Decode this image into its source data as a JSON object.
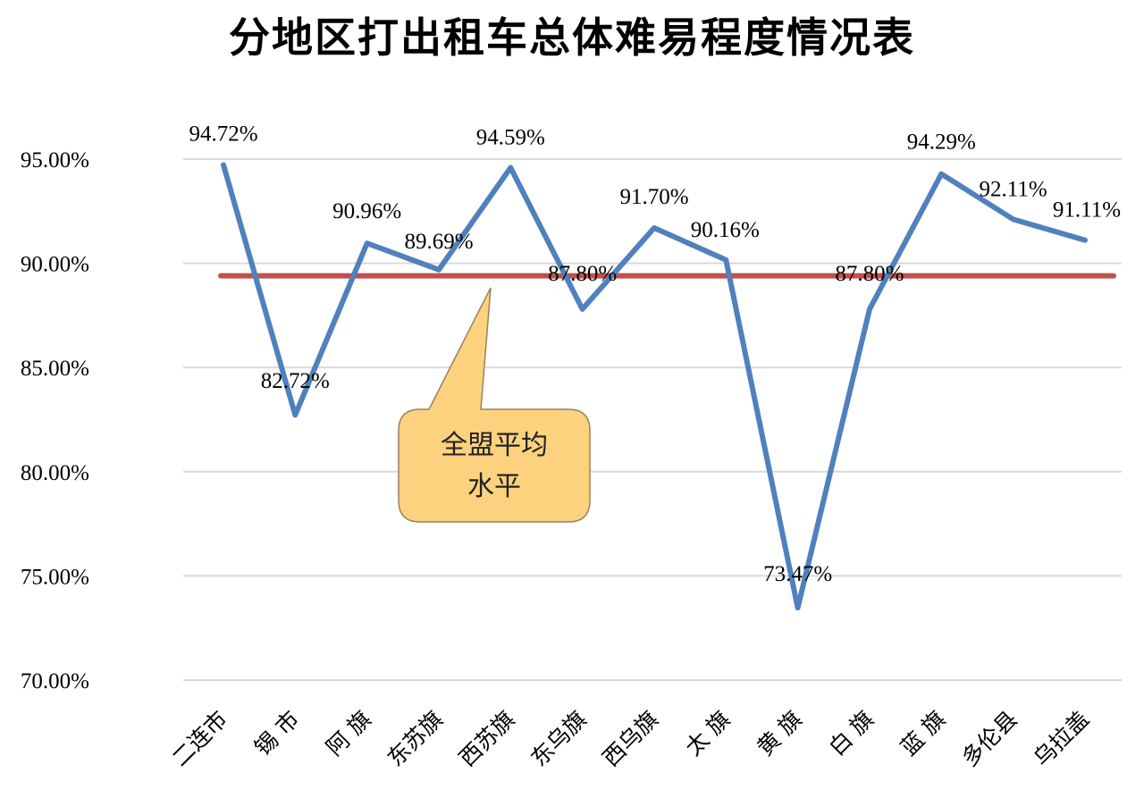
{
  "chart_data": {
    "type": "line",
    "title": "分地区打出租车总体难易程度情况表",
    "categories": [
      "二连市",
      "锡 市",
      "阿 旗",
      "东苏旗",
      "西苏旗",
      "东乌旗",
      "西乌旗",
      "太 旗",
      "黄 旗",
      "白 旗",
      "蓝 旗",
      "多伦县",
      "乌拉盖"
    ],
    "series": [
      {
        "values": [
          94.72,
          82.72,
          90.96,
          89.69,
          94.59,
          87.8,
          91.7,
          90.16,
          73.47,
          87.8,
          94.29,
          92.11,
          91.11
        ],
        "data_labels": [
          "94.72%",
          "82.72%",
          "90.96%",
          "89.69%",
          "94.59%",
          "87.80%",
          "91.70%",
          "90.16%",
          "73.47%",
          "87.80%",
          "94.29%",
          "92.11%",
          "91.11%"
        ],
        "color": "#4f81bd"
      }
    ],
    "reference_line": {
      "value": 89.4,
      "color": "#c0504d",
      "label_lines": [
        "全盟平均",
        "水平"
      ]
    },
    "y_ticks": [
      "70.00%",
      "75.00%",
      "80.00%",
      "85.00%",
      "90.00%",
      "95.00%"
    ],
    "ylim": [
      70,
      95
    ],
    "xlabel": "",
    "ylabel": "",
    "grid": true,
    "gridline_color": "#d9d9d9",
    "callout_fill": "#fcd27e",
    "callout_stroke": "#9a8060"
  }
}
